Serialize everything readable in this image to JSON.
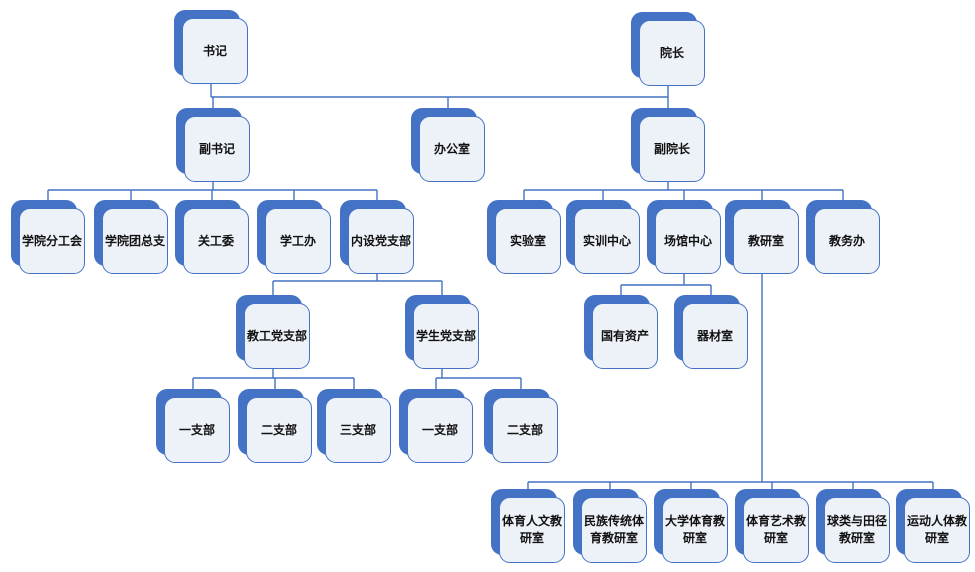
{
  "chart": {
    "type": "org-chart",
    "background": "#ffffff",
    "colors": {
      "shape_back": "#4472C4",
      "shape_border": "#4472C4",
      "shape_fill": "#EDF1F8",
      "connector": "#4472C4",
      "text": "#111111"
    },
    "nodes": [
      {
        "id": "shuji",
        "label": "书记"
      },
      {
        "id": "yuanzhang",
        "label": "院长"
      },
      {
        "id": "fushuji",
        "label": "副书记"
      },
      {
        "id": "bangongshi",
        "label": "办公室"
      },
      {
        "id": "fuyuanzhang",
        "label": "副院长"
      },
      {
        "id": "fengonghui",
        "label": "学院分工会"
      },
      {
        "id": "tuanzongzhi",
        "label": "学院团总支"
      },
      {
        "id": "guangongwei",
        "label": "关工委"
      },
      {
        "id": "xuegongban",
        "label": "学工办"
      },
      {
        "id": "neidang",
        "label": "内设党支部"
      },
      {
        "id": "shiyanshi",
        "label": "实验室"
      },
      {
        "id": "shixun",
        "label": "实训中心"
      },
      {
        "id": "changguan",
        "label": "场馆中心"
      },
      {
        "id": "jiaoyanshi",
        "label": "教研室"
      },
      {
        "id": "jiaowuban",
        "label": "教务办"
      },
      {
        "id": "jiaogong",
        "label": "教工党支部"
      },
      {
        "id": "xuesheng",
        "label": "学生党支部"
      },
      {
        "id": "guoyou",
        "label": "国有资产"
      },
      {
        "id": "qicai",
        "label": "器材室"
      },
      {
        "id": "zb1a",
        "label": "一支部"
      },
      {
        "id": "zb2a",
        "label": "二支部"
      },
      {
        "id": "zb3a",
        "label": "三支部"
      },
      {
        "id": "zb1b",
        "label": "一支部"
      },
      {
        "id": "zb2b",
        "label": "二支部"
      },
      {
        "id": "tyrw",
        "label": "体育人文教研室"
      },
      {
        "id": "mzct",
        "label": "民族传统体育教研室"
      },
      {
        "id": "dxty",
        "label": "大学体育教研室"
      },
      {
        "id": "tyys",
        "label": "体育艺术教研室"
      },
      {
        "id": "qltj",
        "label": "球类与田径教研室"
      },
      {
        "id": "ydrt",
        "label": "运动人体教研室"
      }
    ],
    "edges": [
      {
        "parents": [
          "shuji",
          "yuanzhang"
        ],
        "children": [
          "fushuji",
          "bangongshi",
          "fuyuanzhang"
        ]
      },
      {
        "parents": [
          "fushuji"
        ],
        "children": [
          "fengonghui",
          "tuanzongzhi",
          "guangongwei",
          "xuegongban",
          "neidang"
        ]
      },
      {
        "parents": [
          "fuyuanzhang"
        ],
        "children": [
          "shiyanshi",
          "shixun",
          "changguan",
          "jiaoyanshi",
          "jiaowuban"
        ]
      },
      {
        "parents": [
          "neidang"
        ],
        "children": [
          "jiaogong",
          "xuesheng"
        ]
      },
      {
        "parents": [
          "changguan"
        ],
        "children": [
          "guoyou",
          "qicai"
        ]
      },
      {
        "parents": [
          "jiaoyanshi"
        ],
        "children": [
          "tyrw",
          "mzct",
          "dxty",
          "tyys",
          "qltj",
          "ydrt"
        ]
      },
      {
        "parents": [
          "jiaogong"
        ],
        "children": [
          "zb1a",
          "zb2a",
          "zb3a"
        ]
      },
      {
        "parents": [
          "xuesheng"
        ],
        "children": [
          "zb1b",
          "zb2b"
        ]
      }
    ]
  }
}
